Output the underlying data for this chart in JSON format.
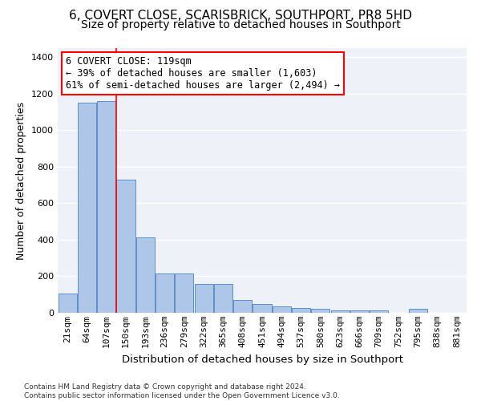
{
  "title_line1": "6, COVERT CLOSE, SCARISBRICK, SOUTHPORT, PR8 5HD",
  "title_line2": "Size of property relative to detached houses in Southport",
  "xlabel": "Distribution of detached houses by size in Southport",
  "ylabel": "Number of detached properties",
  "categories": [
    "21sqm",
    "64sqm",
    "107sqm",
    "150sqm",
    "193sqm",
    "236sqm",
    "279sqm",
    "322sqm",
    "365sqm",
    "408sqm",
    "451sqm",
    "494sqm",
    "537sqm",
    "580sqm",
    "623sqm",
    "666sqm",
    "709sqm",
    "752sqm",
    "795sqm",
    "838sqm",
    "881sqm"
  ],
  "values": [
    105,
    1150,
    1160,
    730,
    415,
    215,
    215,
    160,
    160,
    70,
    50,
    35,
    25,
    20,
    15,
    15,
    15,
    0,
    20,
    0,
    0
  ],
  "bar_color": "#aec6e8",
  "bar_edge_color": "#5b8fc9",
  "background_color": "#eef2f8",
  "annotation_text": "6 COVERT CLOSE: 119sqm\n← 39% of detached houses are smaller (1,603)\n61% of semi-detached houses are larger (2,494) →",
  "annotation_box_color": "white",
  "annotation_box_edge_color": "red",
  "vline_color": "red",
  "vline_pos": 2.5,
  "ylim": [
    0,
    1450
  ],
  "yticks": [
    0,
    200,
    400,
    600,
    800,
    1000,
    1200,
    1400
  ],
  "footer_text": "Contains HM Land Registry data © Crown copyright and database right 2024.\nContains public sector information licensed under the Open Government Licence v3.0.",
  "grid_color": "white",
  "title_fontsize": 11,
  "subtitle_fontsize": 10,
  "tick_fontsize": 8,
  "annotation_fontsize": 8.5,
  "ylabel_fontsize": 9,
  "xlabel_fontsize": 9.5
}
